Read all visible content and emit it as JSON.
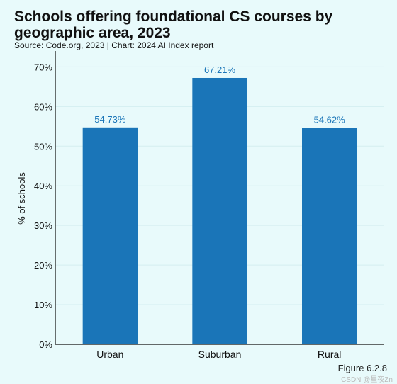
{
  "chart_data": {
    "type": "bar",
    "title": "Schools offering foundational CS courses by geographic area, 2023",
    "subtitle": "Source: Code.org, 2023 | Chart: 2024 AI Index report",
    "categories": [
      "Urban",
      "Suburban",
      "Rural"
    ],
    "values": [
      54.73,
      67.21,
      54.62
    ],
    "data_labels": [
      "54.73%",
      "67.21%",
      "54.62%"
    ],
    "ylabel": "% of schools",
    "ylim": [
      0,
      74
    ],
    "yticks": [
      0,
      10,
      20,
      30,
      40,
      50,
      60,
      70
    ],
    "ytick_labels": [
      "0%",
      "10%",
      "20%",
      "30%",
      "40%",
      "50%",
      "60%",
      "70%"
    ],
    "grid": true,
    "bar_color": "#1a75b8",
    "label_color": "#1a75b8"
  },
  "figure_label": "Figure 6.2.8",
  "watermark": "CSDN @星夜Zn"
}
